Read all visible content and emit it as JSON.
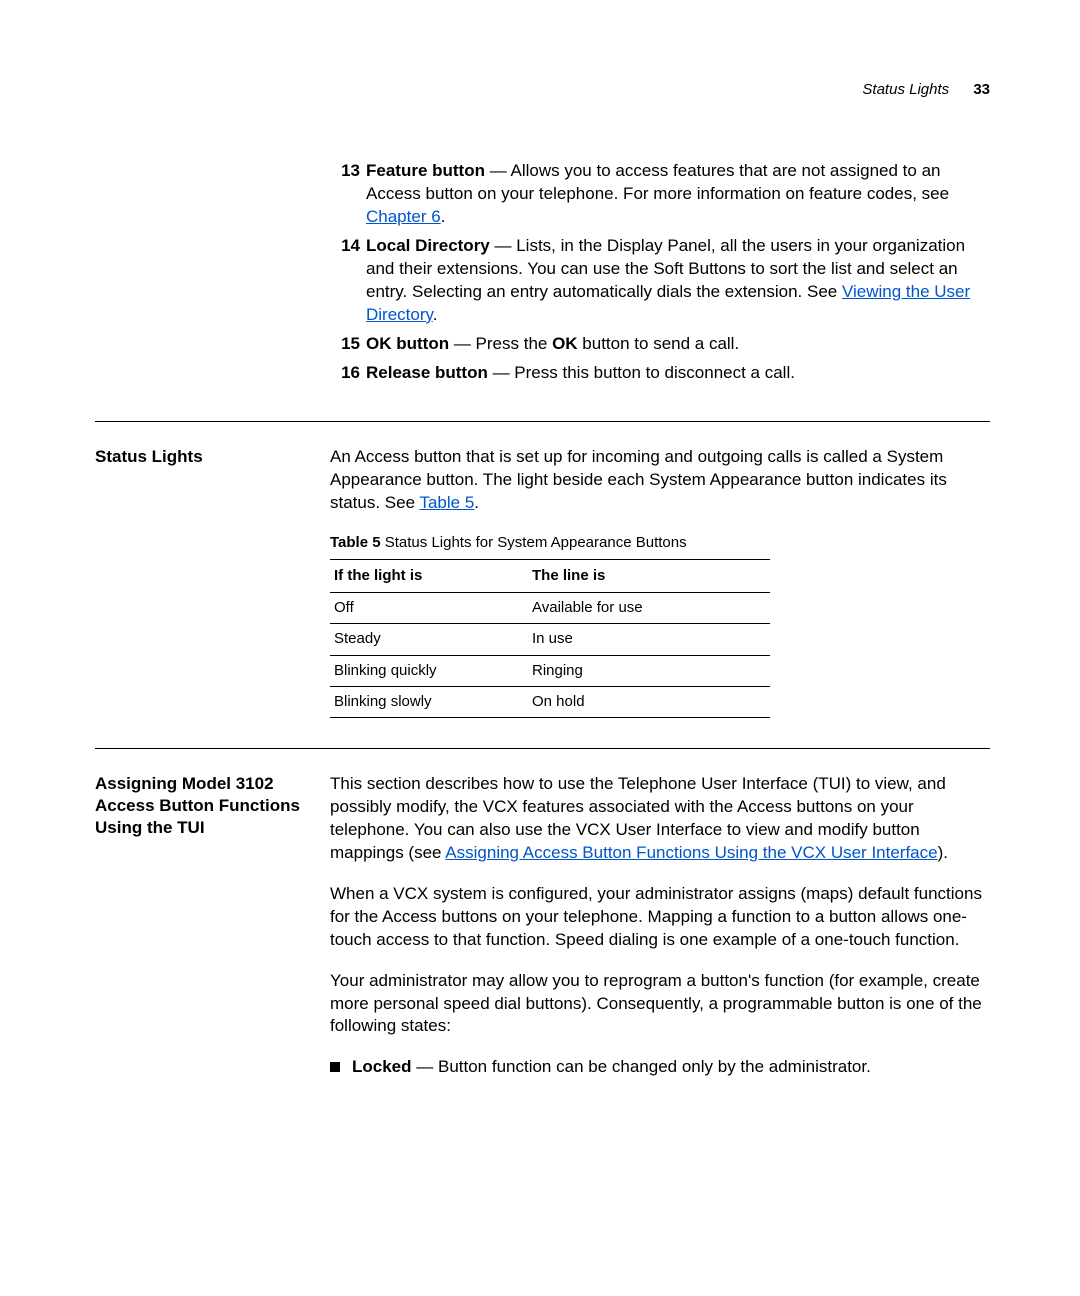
{
  "header": {
    "section": "Status Lights",
    "page": "33"
  },
  "items": [
    {
      "n": "13",
      "lead": "Feature button",
      "pre": " — Allows you to access features that are not assigned to an Access button on your telephone. For more information on feature codes, see ",
      "link": "Chapter 6",
      "post": "."
    },
    {
      "n": "14",
      "lead": "Local Directory",
      "pre": " — Lists, in the Display Panel, all the users in your organization and their extensions. You can use the Soft Buttons to sort the list and select an entry. Selecting an entry automatically dials the extension. See ",
      "link": "Viewing the User Directory",
      "post": "."
    },
    {
      "n": "15",
      "lead": "OK button",
      "pre": " — Press the ",
      "bold2": "OK",
      "post": " button to send a call."
    },
    {
      "n": "16",
      "lead": "Release button",
      "pre": " — Press this button to disconnect a call."
    }
  ],
  "statusLights": {
    "title": "Status Lights",
    "intro_pre": "An Access button that is set up for incoming and outgoing calls is called a System Appearance button. The light beside each System Appearance button indicates its status. See ",
    "intro_link": "Table 5",
    "intro_post": ".",
    "table_caption_b": "Table 5",
    "table_caption_rest": "   Status Lights for System Appearance Buttons",
    "col1": "If the light is",
    "col2": "The line is",
    "rows": [
      {
        "a": "Off",
        "b": "Available for use"
      },
      {
        "a": "Steady",
        "b": "In use"
      },
      {
        "a": "Blinking quickly",
        "b": "Ringing"
      },
      {
        "a": "Blinking slowly",
        "b": "On hold"
      }
    ]
  },
  "assign": {
    "title": "Assigning Model 3102 Access Button Functions Using the TUI",
    "p1_pre": "This section describes how to use the Telephone User Interface (TUI) to view, and possibly modify, the VCX features associated with the Access buttons on your telephone. You can also use the VCX User Interface to view and modify button mappings (see ",
    "p1_link": "Assigning Access Button Functions Using the VCX User Interface",
    "p1_post": ").",
    "p2": "When a VCX system is configured, your administrator assigns (maps) default functions for the Access buttons on your telephone. Mapping a function to a button allows one-touch access to that function. Speed dialing is one example of a one-touch function.",
    "p3": "Your administrator may allow you to reprogram a button's function (for example, create more personal speed dial buttons). Consequently, a programmable button is one of the following states:",
    "bullet_lead": "Locked",
    "bullet_rest": " — Button function can be changed only by the administrator."
  }
}
